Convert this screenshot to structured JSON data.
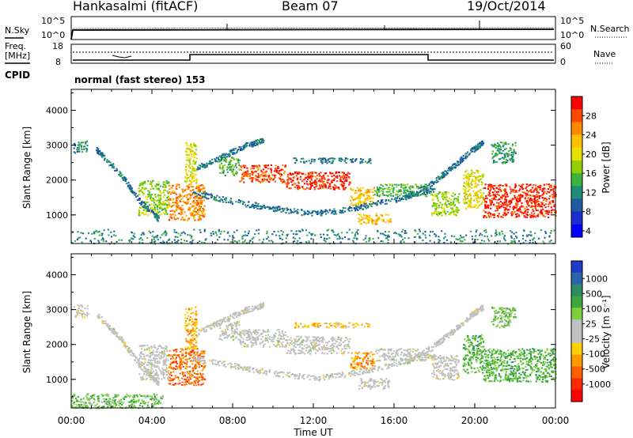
{
  "header": {
    "station": "Hankasalmi (fitACF)",
    "beam": "Beam 07",
    "date": "19/Oct/2014"
  },
  "noise_panel": {
    "left_label": "N.Sky",
    "right_label": "N.Search",
    "ticks_left": [
      "10^5",
      "10^0"
    ],
    "ticks_right": [
      "10^5",
      "10^0"
    ]
  },
  "freq_panel": {
    "left_label_1": "Freq.",
    "left_label_2": "[MHz]",
    "ticks_left": [
      "18",
      "8"
    ],
    "right_label": "Nave",
    "ticks_right": [
      "60",
      "0"
    ]
  },
  "cpid": {
    "label": "CPID",
    "mode": "normal (fast stereo) 153"
  },
  "chart_data": [
    {
      "type": "heatmap",
      "name": "power-panel",
      "ylabel": "Slant Range [km]",
      "yticks": [
        "4000",
        "3000",
        "2000",
        "1000"
      ],
      "ylim": [
        180,
        4600
      ],
      "xlim": [
        0,
        24
      ],
      "colorbar": {
        "label": "Power [dB]",
        "ticks": [
          "28",
          "24",
          "20",
          "16",
          "12",
          "8",
          "4"
        ],
        "colors": [
          "#ff0000",
          "#ff4a00",
          "#ff8a00",
          "#ffc000",
          "#e8e000",
          "#90d000",
          "#3cb43c",
          "#1e8c78",
          "#1e5aa0",
          "#1c2dd0",
          "#0000ff"
        ]
      },
      "bands": [
        {
          "t0": 0.1,
          "t1": 0.8,
          "r0": 2800,
          "r1": 3150,
          "c": 0.3
        },
        {
          "t0": 3.3,
          "t1": 4.8,
          "r0": 1000,
          "r1": 2000,
          "c": 0.5
        },
        {
          "t0": 4.8,
          "t1": 6.6,
          "r0": 850,
          "r1": 1900,
          "c": 0.8
        },
        {
          "t0": 5.6,
          "t1": 6.2,
          "r0": 1900,
          "r1": 3100,
          "c": 0.6
        },
        {
          "t0": 7.3,
          "t1": 8.3,
          "r0": 2150,
          "r1": 2700,
          "c": 0.4
        },
        {
          "t0": 8.3,
          "t1": 10.6,
          "r0": 1950,
          "r1": 2450,
          "c": 0.9
        },
        {
          "t0": 10.6,
          "t1": 13.8,
          "r0": 1750,
          "r1": 2250,
          "c": 0.95
        },
        {
          "t0": 13.8,
          "t1": 15.0,
          "r0": 1300,
          "r1": 1800,
          "c": 0.7
        },
        {
          "t0": 15.0,
          "t1": 17.6,
          "r0": 1550,
          "r1": 1900,
          "c": 0.4
        },
        {
          "t0": 11.0,
          "t1": 14.8,
          "r0": 2500,
          "r1": 2650,
          "c": 0.25
        },
        {
          "t0": 14.2,
          "t1": 15.8,
          "r0": 750,
          "r1": 1050,
          "c": 0.7
        },
        {
          "t0": 17.8,
          "t1": 19.2,
          "r0": 1000,
          "r1": 1700,
          "c": 0.5
        },
        {
          "t0": 19.4,
          "t1": 20.4,
          "r0": 1200,
          "r1": 2300,
          "c": 0.6
        },
        {
          "t0": 20.4,
          "t1": 24.0,
          "r0": 950,
          "r1": 1900,
          "c": 0.95
        },
        {
          "t0": 20.8,
          "t1": 22.0,
          "r0": 2500,
          "r1": 3100,
          "c": 0.35
        },
        {
          "t0": 0.0,
          "t1": 24.0,
          "r0": 190,
          "r1": 600,
          "c": 0.3
        }
      ],
      "arcs": [
        {
          "pts": [
            [
              1.2,
              2900
            ],
            [
              2.4,
              2200
            ],
            [
              3.4,
              1400
            ],
            [
              4.3,
              900
            ]
          ],
          "c": 0.25
        },
        {
          "pts": [
            [
              6.0,
              1650
            ],
            [
              8.0,
              1400
            ],
            [
              10.0,
              1200
            ],
            [
              12.0,
              1050
            ],
            [
              14.0,
              1200
            ],
            [
              16.0,
              1450
            ],
            [
              18.0,
              1750
            ]
          ],
          "c": 0.25
        },
        {
          "pts": [
            [
              6.2,
              2350
            ],
            [
              7.5,
              2700
            ],
            [
              8.6,
              3000
            ],
            [
              9.5,
              3150
            ]
          ],
          "c": 0.25
        },
        {
          "pts": [
            [
              16.5,
              1500
            ],
            [
              17.8,
              1900
            ],
            [
              18.8,
              2350
            ],
            [
              19.8,
              2850
            ],
            [
              20.4,
              3100
            ]
          ],
          "c": 0.25
        }
      ]
    },
    {
      "type": "heatmap",
      "name": "velocity-panel",
      "ylabel": "Slant Range [km]",
      "yticks": [
        "4000",
        "3000",
        "2000",
        "1000"
      ],
      "ylim": [
        180,
        4600
      ],
      "xlim": [
        0,
        24
      ],
      "xticks": [
        "00:00",
        "04:00",
        "08:00",
        "12:00",
        "16:00",
        "20:00",
        "00:00"
      ],
      "xlabel": "Time UT",
      "colorbar": {
        "label": "Velocity [m s⁻¹]",
        "ticks": [
          "1000",
          "500",
          "100",
          "25",
          "-25",
          "-100",
          "-500",
          "-1000"
        ],
        "colors": [
          "#1e3cc8",
          "#2a64a8",
          "#2e8c64",
          "#3aa83a",
          "#7cd03c",
          "#c0c0c0",
          "#c0c0c0",
          "#ffd000",
          "#ff9a00",
          "#ff6000",
          "#ff2a00",
          "#ff0000"
        ]
      },
      "bands": [
        {
          "t0": 0.1,
          "t1": 0.8,
          "r0": 2800,
          "r1": 3150,
          "c": 0.5
        },
        {
          "t0": 3.3,
          "t1": 4.8,
          "r0": 1000,
          "r1": 2000,
          "c": 0.5
        },
        {
          "t0": 4.8,
          "t1": 6.6,
          "r0": 850,
          "r1": 1900,
          "c": 0.8
        },
        {
          "t0": 5.6,
          "t1": 6.2,
          "r0": 1900,
          "r1": 3100,
          "c": 0.7
        },
        {
          "t0": 7.3,
          "t1": 8.3,
          "r0": 2150,
          "r1": 2700,
          "c": 0.5
        },
        {
          "t0": 8.3,
          "t1": 10.6,
          "r0": 1950,
          "r1": 2450,
          "c": 0.5
        },
        {
          "t0": 10.6,
          "t1": 13.8,
          "r0": 1750,
          "r1": 2250,
          "c": 0.5
        },
        {
          "t0": 13.8,
          "t1": 15.0,
          "r0": 1300,
          "r1": 1800,
          "c": 0.75
        },
        {
          "t0": 15.0,
          "t1": 17.6,
          "r0": 1550,
          "r1": 1900,
          "c": 0.5
        },
        {
          "t0": 11.0,
          "t1": 14.8,
          "r0": 2500,
          "r1": 2650,
          "c": 0.65
        },
        {
          "t0": 14.2,
          "t1": 15.8,
          "r0": 750,
          "r1": 1050,
          "c": 0.5
        },
        {
          "t0": 17.8,
          "t1": 19.2,
          "r0": 1000,
          "r1": 1700,
          "c": 0.5
        },
        {
          "t0": 19.4,
          "t1": 20.4,
          "r0": 1200,
          "r1": 2300,
          "c": 0.3
        },
        {
          "t0": 20.4,
          "t1": 24.0,
          "r0": 950,
          "r1": 1900,
          "c": 0.3
        },
        {
          "t0": 20.8,
          "t1": 22.0,
          "r0": 2500,
          "r1": 3100,
          "c": 0.35
        },
        {
          "t0": 0.0,
          "t1": 4.5,
          "r0": 190,
          "r1": 600,
          "c": 0.35
        }
      ],
      "arcs": [
        {
          "pts": [
            [
              1.2,
              2900
            ],
            [
              2.4,
              2200
            ],
            [
              3.4,
              1400
            ],
            [
              4.3,
              900
            ]
          ],
          "c": 0.5
        },
        {
          "pts": [
            [
              6.0,
              1650
            ],
            [
              8.0,
              1400
            ],
            [
              10.0,
              1200
            ],
            [
              12.0,
              1050
            ],
            [
              14.0,
              1200
            ],
            [
              16.0,
              1450
            ],
            [
              18.0,
              1750
            ]
          ],
          "c": 0.5
        },
        {
          "pts": [
            [
              6.2,
              2350
            ],
            [
              7.5,
              2700
            ],
            [
              8.6,
              3000
            ],
            [
              9.5,
              3150
            ]
          ],
          "c": 0.5
        },
        {
          "pts": [
            [
              16.5,
              1500
            ],
            [
              17.8,
              1900
            ],
            [
              18.8,
              2350
            ],
            [
              19.8,
              2850
            ],
            [
              20.4,
              3100
            ]
          ],
          "c": 0.5
        }
      ]
    }
  ]
}
